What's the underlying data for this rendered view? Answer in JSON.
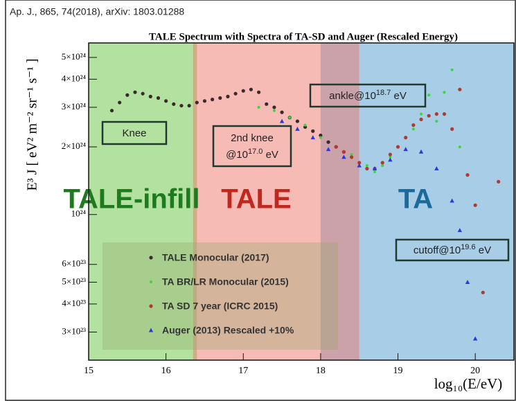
{
  "chart_data": {
    "type": "scatter",
    "source": "Ap. J., 865, 74(2018), arXiv: 1803.01288",
    "title": "TALE Spectrum with Spectra of TA-SD and Auger (Rescaled Energy)",
    "x_label": "log₁₀(E/eV)",
    "y_label": "E³ J [ eV² m⁻² sr⁻¹ s⁻¹ ]",
    "log_y": true,
    "xlim": [
      15,
      20.5
    ],
    "xticks": [
      15,
      16,
      17,
      18,
      19,
      20
    ],
    "ylim": [
      2.25e+23,
      5.8e+24
    ],
    "yticks": [
      {
        "value": 3e+23,
        "label": "3×10²³"
      },
      {
        "value": 4e+23,
        "label": "4×10²³"
      },
      {
        "value": 5e+23,
        "label": "5×10²³"
      },
      {
        "value": 6e+23,
        "label": "6×10²³"
      },
      {
        "value": 1e+24,
        "label": "10²⁴"
      },
      {
        "value": 2e+24,
        "label": "2×10²⁴"
      },
      {
        "value": 3e+24,
        "label": "3×10²⁴"
      },
      {
        "value": 4e+24,
        "label": "4×10²⁴"
      },
      {
        "value": 5e+24,
        "label": "5×10²⁴"
      }
    ],
    "regions": [
      {
        "name": "TALE-infill",
        "xlim": [
          15,
          16.4
        ],
        "color": "#b3e2a0",
        "text_color": "#1e7a1e"
      },
      {
        "name": "TA",
        "xlim": [
          18,
          20.5
        ],
        "color": "#a8cde6",
        "text_color": "#1a6a9a"
      },
      {
        "name": "TALE",
        "xlim": [
          16.35,
          18.5
        ],
        "color": "rgba(240,120,110,0.5)",
        "text_color": "#c0281e"
      }
    ],
    "annotations": [
      {
        "text": "Knee"
      },
      {
        "text": "2nd knee",
        "line2": "@10",
        "superscript": "17.0",
        "suffix": " eV"
      },
      {
        "text": "ankle@10",
        "superscript": "18.7",
        "suffix": " eV"
      },
      {
        "text": "cutoff@10",
        "superscript": "19.6",
        "suffix": " eV"
      }
    ],
    "series": [
      {
        "name": "TALE Monocular (2017)",
        "color": "#3a2a2a",
        "marker": "circle",
        "x": [
          15.3,
          15.4,
          15.5,
          15.6,
          15.7,
          15.8,
          15.9,
          16.0,
          16.1,
          16.2,
          16.3,
          16.4,
          16.5,
          16.6,
          16.7,
          16.8,
          16.9,
          17.0,
          17.1,
          17.2,
          17.3,
          17.4,
          17.5,
          17.6,
          17.7,
          17.8,
          17.9,
          18.0,
          18.1,
          18.2,
          18.3
        ],
        "values": [
          2.9e+24,
          3.15e+24,
          3.4e+24,
          3.5e+24,
          3.45e+24,
          3.35e+24,
          3.3e+24,
          3.2e+24,
          3.1e+24,
          3.05e+24,
          3.05e+24,
          3.15e+24,
          3.2e+24,
          3.25e+24,
          3.3e+24,
          3.35e+24,
          3.45e+24,
          3.55e+24,
          3.6e+24,
          3.5e+24,
          3.1e+24,
          3e+24,
          2.85e+24,
          2.7e+24,
          2.6e+24,
          2.45e+24,
          2.35e+24,
          2.25e+24,
          2.1e+24,
          2e+24,
          1.9e+24
        ]
      },
      {
        "name": "TA BR/LR Monocular (2015)",
        "color": "#3ad63a",
        "marker": "circle",
        "x": [
          17.2,
          17.4,
          17.6,
          17.8,
          18.0,
          18.2,
          18.4,
          18.6,
          18.7,
          18.8,
          18.9,
          19.0,
          19.1,
          19.2,
          19.3,
          19.4,
          19.5,
          19.6,
          19.7,
          19.8,
          19.9,
          20.0
        ],
        "values": [
          3e+24,
          2.9e+24,
          2.7e+24,
          2.5e+24,
          2.2e+24,
          2e+24,
          1.85e+24,
          1.65e+24,
          1.55e+24,
          1.65e+24,
          1.8e+24,
          2e+24,
          2.2e+24,
          2.4e+24,
          2.8e+24,
          3.4e+24,
          2.6e+24,
          3.5e+24,
          4.4e+24,
          2e+24,
          1.5e+24,
          1.1e+24
        ]
      },
      {
        "name": "TA SD 7 year (ICRC 2015)",
        "color": "#b03a2e",
        "marker": "circle",
        "x": [
          18.2,
          18.3,
          18.4,
          18.5,
          18.6,
          18.7,
          18.8,
          18.9,
          19.0,
          19.1,
          19.2,
          19.3,
          19.4,
          19.5,
          19.6,
          19.7,
          19.8,
          19.9,
          20.0,
          20.1,
          20.3
        ],
        "values": [
          2e+24,
          1.9e+24,
          1.8e+24,
          1.7e+24,
          1.6e+24,
          1.6e+24,
          1.7e+24,
          1.85e+24,
          2e+24,
          2.2e+24,
          2.5e+24,
          2.65e+24,
          2.75e+24,
          2.8e+24,
          2.8e+24,
          2.4e+24,
          3.6e+24,
          1.5e+24,
          1.1e+24,
          4.5e+23,
          1.4e+24
        ]
      },
      {
        "name": "Auger (2013) Rescaled +10%",
        "color": "#2a3ad8",
        "marker": "triangle",
        "x": [
          17.5,
          17.7,
          17.9,
          18.1,
          18.3,
          18.5,
          18.7,
          18.9,
          19.1,
          19.3,
          19.5,
          19.7,
          19.8,
          19.9,
          20.0
        ],
        "values": [
          2.6e+24,
          2.4e+24,
          2.2e+24,
          1.95e+24,
          1.8e+24,
          1.65e+24,
          1.6e+24,
          1.75e+24,
          1.95e+24,
          1.9e+24,
          1.6e+24,
          1.15e+24,
          8.5e+23,
          5e+23,
          2.8e+23
        ]
      }
    ]
  }
}
